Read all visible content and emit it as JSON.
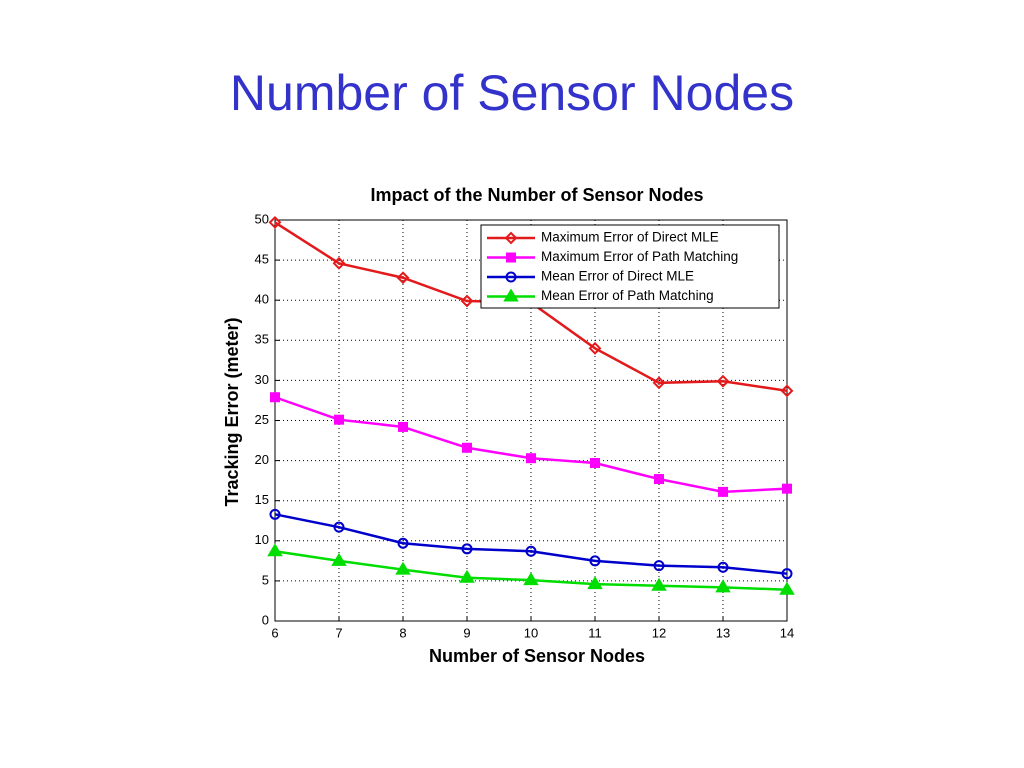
{
  "slide": {
    "title": "Number of Sensor Nodes"
  },
  "chart_data": {
    "type": "line",
    "title": "Impact of the Number of Sensor Nodes",
    "x_label": "Number of Sensor Nodes",
    "y_label": "Tracking Error (meter)",
    "x": [
      6,
      7,
      8,
      9,
      10,
      11,
      12,
      13,
      14
    ],
    "xlim": [
      6,
      14
    ],
    "xticks": [
      6,
      7,
      8,
      9,
      10,
      11,
      12,
      13,
      14
    ],
    "ylim": [
      0,
      50
    ],
    "yticks": [
      0,
      5,
      10,
      15,
      20,
      25,
      30,
      35,
      40,
      45,
      50
    ],
    "grid": true,
    "legend": "upper right",
    "series": [
      {
        "name": "Maximum Error of Direct MLE",
        "color": "#e31a1c",
        "marker": "diamond",
        "values": [
          49.7,
          44.6,
          42.8,
          39.9,
          39.7,
          34.0,
          29.7,
          29.9,
          28.7
        ]
      },
      {
        "name": "Maximum Error of Path Matching",
        "color": "#ff00ff",
        "marker": "square",
        "values": [
          27.9,
          25.1,
          24.2,
          21.6,
          20.3,
          19.7,
          17.7,
          16.1,
          16.5
        ]
      },
      {
        "name": "Mean Error of Direct MLE",
        "color": "#0000cc",
        "marker": "circle",
        "values": [
          13.3,
          11.7,
          9.7,
          9.0,
          8.7,
          7.5,
          6.9,
          6.7,
          5.9
        ]
      },
      {
        "name": "Mean Error of Path Matching",
        "color": "#00dd00",
        "marker": "triangle",
        "values": [
          8.7,
          7.5,
          6.4,
          5.4,
          5.1,
          4.6,
          4.4,
          4.2,
          3.9
        ]
      }
    ]
  }
}
